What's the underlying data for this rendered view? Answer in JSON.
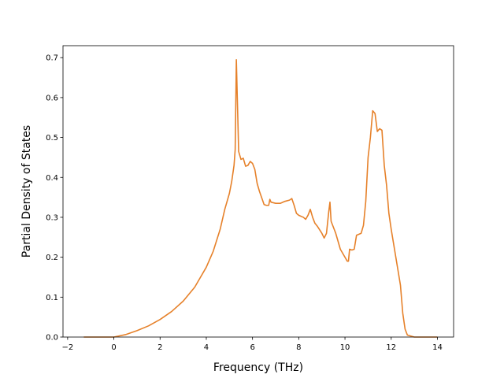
{
  "chart_data": {
    "type": "line",
    "title": "",
    "xlabel": "Frequency (THz)",
    "ylabel": "Partial Density of States",
    "xlim": [
      -2.2,
      14.7
    ],
    "ylim": [
      0.0,
      0.73
    ],
    "grid": false,
    "legend": "none",
    "x_ticks": [
      -2,
      0,
      2,
      4,
      6,
      8,
      10,
      12,
      14
    ],
    "x_tick_labels": [
      "−2",
      "0",
      "2",
      "4",
      "6",
      "8",
      "10",
      "12",
      "14"
    ],
    "y_ticks": [
      0.0,
      0.1,
      0.2,
      0.3,
      0.4,
      0.5,
      0.6,
      0.7
    ],
    "y_tick_labels": [
      "0.0",
      "0.1",
      "0.2",
      "0.3",
      "0.4",
      "0.5",
      "0.6",
      "0.7"
    ],
    "series": [
      {
        "color": "#e6812a",
        "x": [
          -1.3,
          -0.5,
          0.0,
          0.5,
          1.0,
          1.5,
          2.0,
          2.5,
          3.0,
          3.5,
          4.0,
          4.3,
          4.6,
          4.8,
          5.0,
          5.1,
          5.2,
          5.25,
          5.3,
          5.35,
          5.4,
          5.5,
          5.6,
          5.7,
          5.8,
          5.9,
          6.0,
          6.1,
          6.2,
          6.3,
          6.5,
          6.6,
          6.7,
          6.75,
          6.8,
          7.0,
          7.2,
          7.4,
          7.6,
          7.7,
          7.8,
          7.9,
          8.0,
          8.2,
          8.3,
          8.4,
          8.5,
          8.6,
          8.7,
          8.8,
          9.0,
          9.1,
          9.2,
          9.3,
          9.35,
          9.4,
          9.6,
          9.8,
          10.0,
          10.1,
          10.15,
          10.2,
          10.3,
          10.4,
          10.5,
          10.7,
          10.8,
          10.9,
          11.0,
          11.1,
          11.2,
          11.3,
          11.4,
          11.5,
          11.6,
          11.7,
          11.8,
          11.9,
          12.0,
          12.2,
          12.4,
          12.5,
          12.6,
          12.7,
          13.0,
          14.0
        ],
        "y": [
          0.0,
          0.0,
          0.0,
          0.006,
          0.016,
          0.028,
          0.044,
          0.064,
          0.09,
          0.125,
          0.175,
          0.215,
          0.27,
          0.32,
          0.36,
          0.39,
          0.43,
          0.47,
          0.695,
          0.58,
          0.465,
          0.445,
          0.448,
          0.428,
          0.43,
          0.44,
          0.435,
          0.42,
          0.385,
          0.365,
          0.332,
          0.33,
          0.33,
          0.345,
          0.338,
          0.335,
          0.335,
          0.34,
          0.343,
          0.347,
          0.33,
          0.31,
          0.305,
          0.3,
          0.295,
          0.305,
          0.32,
          0.3,
          0.285,
          0.278,
          0.26,
          0.248,
          0.26,
          0.315,
          0.338,
          0.29,
          0.26,
          0.22,
          0.2,
          0.19,
          0.19,
          0.22,
          0.218,
          0.22,
          0.255,
          0.26,
          0.28,
          0.34,
          0.45,
          0.5,
          0.567,
          0.56,
          0.515,
          0.522,
          0.518,
          0.43,
          0.38,
          0.31,
          0.27,
          0.2,
          0.13,
          0.06,
          0.02,
          0.005,
          0.0,
          0.0
        ]
      }
    ]
  }
}
